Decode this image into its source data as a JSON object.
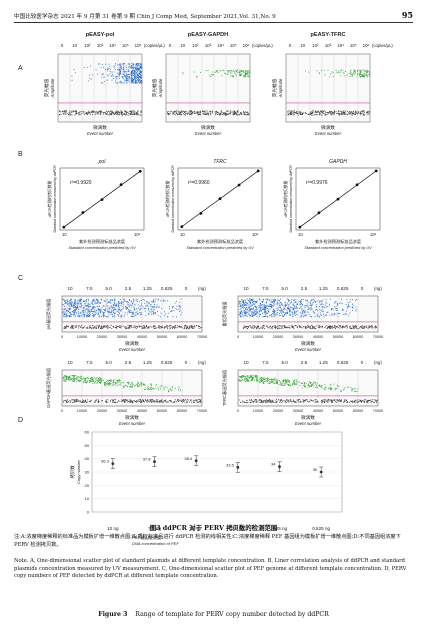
{
  "header": {
    "left": "中国比较医学杂志 2021 年 9 月第 31 卷第 9 期  Chin J Comp Med, September 2021,Vol. 31,No. 9",
    "page": "95"
  },
  "panel_labels": {
    "a": "A",
    "b": "B",
    "c": "C",
    "d": "D"
  },
  "panel_a": {
    "titles": [
      "pEASY-pol",
      "pEASY-GAPDH",
      "pEASY-TFRC"
    ],
    "units": "(copies/μL)",
    "conc_labels": [
      "0",
      "10",
      "10²",
      "10³",
      "10⁴",
      "10⁵",
      "10⁶"
    ],
    "ylabel_cn": "荧光幅值",
    "ylabel_en": "Amplitude",
    "xlabel_cn": "微滴数",
    "xlabel_en": "Event number",
    "colors": {
      "pol": "#2f6fd0",
      "gapdh": "#3aa53a",
      "tfrc": "#3aa53a",
      "negative": "#444444",
      "threshold": "#c0208a"
    }
  },
  "panel_b": {
    "chart_data": [
      {
        "type": "scatter",
        "title": "pol",
        "r2": "r²=0.9920",
        "x": [
          10,
          100,
          1000,
          10000,
          100000
        ],
        "y": [
          10,
          110,
          900,
          10500,
          92000
        ]
      },
      {
        "type": "scatter",
        "title": "TFRC",
        "r2": "r²=0.9960",
        "x": [
          10,
          100,
          1000,
          10000,
          100000
        ],
        "y": [
          11,
          95,
          1050,
          9800,
          98000
        ]
      },
      {
        "type": "scatter",
        "title": "GAPDH",
        "r2": "r²=0.9976",
        "x": [
          10,
          100,
          1000,
          10000,
          100000
        ],
        "y": [
          10,
          105,
          980,
          10200,
          99000
        ]
      }
    ],
    "ylabel_cn": "dPCR检测的拷贝数量",
    "ylabel_en": "Standard concentration measured by ddPCR",
    "xlabel_cn": "紫外检测预测标准品浓度",
    "xlabel_en": "Standard concentration predicted by UV"
  },
  "panel_c": {
    "conc_labels": [
      "10",
      "7.5",
      "5.0",
      "2.5",
      "1.25",
      "0.625",
      "0"
    ],
    "unit": "(ng)",
    "xticks": [
      "0",
      "10000",
      "20000",
      "30000",
      "40000",
      "50000",
      "60000",
      "70000"
    ],
    "ylabel_pol": "pol基因荧光幅值",
    "ylabel_gapdh": "GAPDH基因荧光幅值",
    "ylabel_tfrc": "TFRC基因荧光幅值",
    "ylabel_all": "重组荧光幅值",
    "xlabel_cn": "微滴数",
    "xlabel_en": "Event number"
  },
  "panel_d": {
    "chart_data": {
      "type": "scatter",
      "categories": [
        "10 ng",
        "7.5 ng",
        "5 ng",
        "2.5 ng",
        "1.25 ng",
        "0.625 ng"
      ],
      "values": [
        36.3,
        37.8,
        38.4,
        33.5,
        34.0,
        30.0
      ],
      "value_labels": [
        "36.3",
        "37.8",
        "38.4",
        "33.5",
        "34",
        "30"
      ],
      "ylabel_cn": "拷贝数",
      "ylabel_en": "Copy number",
      "xlabel_cn": "PEF基因组浓度",
      "xlabel_en": "DNA concentration of PEF",
      "ylim": [
        0,
        60
      ],
      "yticks": [
        0,
        10,
        20,
        30,
        40,
        50,
        60
      ]
    }
  },
  "figure": {
    "title_cn": "图3   ddPCR 对于 PERV 拷贝数的检测范围",
    "note_cn": "注:A:浓度梯度稀释的标准品为模板扩增一维散点图;B:质粒标准品进行 ddPCR 检测的线相关性;C:浓度梯度稀释 PEF 基因组为模板扩增一维散点图;D:不同基因组浓度下 PERV 检测拷贝数。",
    "note_en": "Note. A, One-dimensional scatter plot of standard plasmids at different template concentration. B, Liner correlation analysis of ddPCR and standard plasmids concentration measured by UV measurement. C, One-dimensional scatter plot of PEF genome at different template concentration. D, PERV copy numbers of PEF detected by ddPCR at different template concentration.",
    "title_en_bold": "Figure 3",
    "title_en": "Range of template for PERV copy number detected by ddPCR"
  }
}
